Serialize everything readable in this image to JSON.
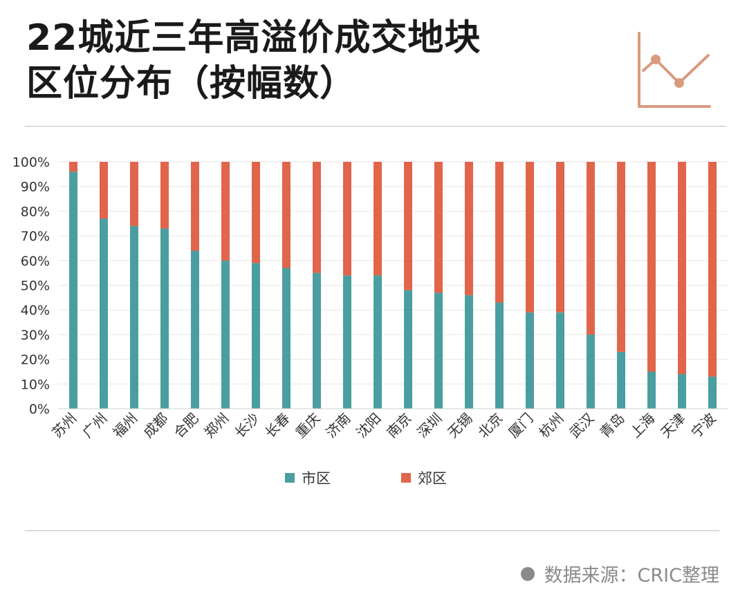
{
  "title": {
    "line1": "22城近三年高溢价成交地块",
    "line2": "区位分布（按幅数）"
  },
  "legend": {
    "items": [
      {
        "label": "市区",
        "color": "#4a9ea1"
      },
      {
        "label": "郊区",
        "color": "#e0654a"
      }
    ]
  },
  "source": "数据来源：CRIC整理",
  "chart_data": {
    "type": "bar",
    "stacked": true,
    "categories": [
      "苏州",
      "广州",
      "福州",
      "成都",
      "合肥",
      "郑州",
      "长沙",
      "长春",
      "重庆",
      "济南",
      "沈阳",
      "南京",
      "深圳",
      "无锡",
      "北京",
      "厦门",
      "杭州",
      "武汉",
      "青岛",
      "上海",
      "天津",
      "宁波"
    ],
    "series": [
      {
        "name": "市区",
        "color": "#4a9ea1",
        "values": [
          96,
          77,
          74,
          73,
          64,
          60,
          59,
          57,
          55,
          54,
          54,
          48,
          47,
          46,
          43,
          39,
          39,
          30,
          23,
          15,
          14,
          13
        ]
      },
      {
        "name": "郊区",
        "color": "#e0654a",
        "values": [
          4,
          23,
          26,
          27,
          36,
          40,
          41,
          43,
          45,
          46,
          46,
          52,
          53,
          54,
          57,
          61,
          61,
          70,
          77,
          85,
          86,
          87
        ]
      }
    ],
    "ylim": [
      0,
      100
    ],
    "yticks": [
      "0%",
      "10%",
      "20%",
      "30%",
      "40%",
      "50%",
      "60%",
      "70%",
      "80%",
      "90%",
      "100%"
    ],
    "grid": true,
    "legend_position": "bottom"
  }
}
